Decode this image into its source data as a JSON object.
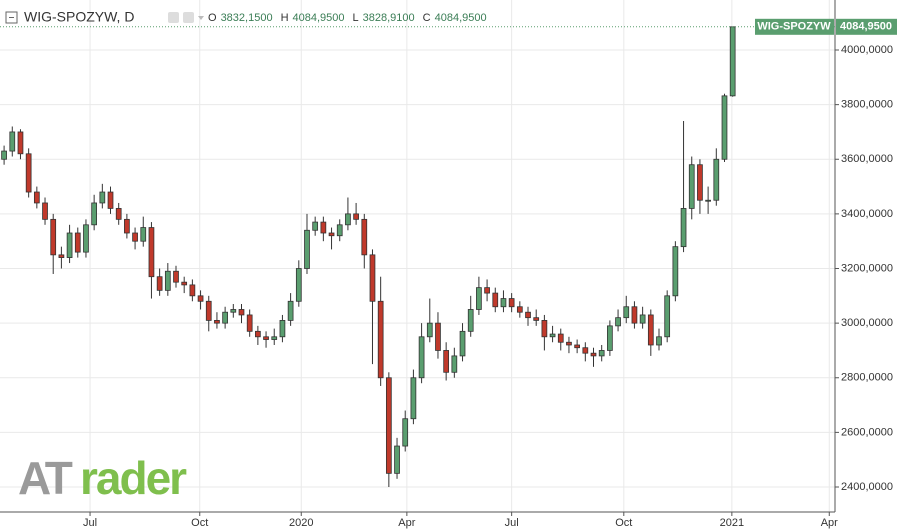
{
  "chart_data": {
    "type": "candlestick",
    "symbol": "WIG-SPOZYW, D",
    "ohlc_legend": [
      {
        "key": "O",
        "text": "3832,1500"
      },
      {
        "key": "H",
        "text": "4084,9500"
      },
      {
        "key": "L",
        "text": "3828,9100"
      },
      {
        "key": "C",
        "text": "4084,9500"
      }
    ],
    "last_price": {
      "name": "WIG-SPOZYW",
      "value": 4084.95,
      "label": "4084,9500"
    },
    "watermark": [
      "AT",
      "rader"
    ],
    "categories": [
      null,
      null,
      null,
      null,
      null,
      null,
      null,
      null,
      null,
      null,
      null,
      null,
      null,
      null,
      null,
      null,
      null,
      null,
      null,
      null,
      null,
      null,
      null,
      null,
      null,
      null,
      null,
      null,
      null,
      null,
      null,
      null,
      null,
      null,
      null,
      null,
      null,
      null,
      null,
      null,
      null,
      null,
      null,
      null,
      null,
      null,
      null,
      null,
      null,
      null,
      null,
      null,
      null,
      null,
      null,
      null,
      null,
      null,
      null,
      null,
      null,
      null,
      null,
      null,
      null,
      null,
      null,
      null,
      null,
      null,
      null,
      null,
      null,
      null,
      null,
      null,
      null,
      null,
      null,
      null,
      null,
      null,
      null,
      null,
      null,
      null,
      null,
      null,
      null,
      null
    ],
    "open": [
      3600,
      3630,
      3700,
      3620,
      3480,
      3440,
      3380,
      3250,
      3240,
      3330,
      3260,
      3360,
      3440,
      3480,
      3420,
      3380,
      3330,
      3300,
      3350,
      3170,
      3120,
      3190,
      3150,
      3140,
      3100,
      3080,
      3010,
      3000,
      3040,
      3050,
      3030,
      2970,
      2950,
      2940,
      2950,
      3010,
      3080,
      3200,
      3340,
      3370,
      3330,
      3320,
      3360,
      3400,
      3380,
      3250,
      3080,
      2800,
      2450,
      2550,
      2650,
      2800,
      2950,
      3000,
      2900,
      2820,
      2880,
      2970,
      3050,
      3130,
      3110,
      3060,
      3090,
      3060,
      3040,
      3020,
      3010,
      2950,
      2960,
      2930,
      2920,
      2910,
      2890,
      2880,
      2900,
      2990,
      3020,
      3060,
      3000,
      3030,
      2920,
      2950,
      3100,
      3280,
      3420,
      3580,
      3450,
      3450,
      3600,
      3832.15
    ],
    "high": [
      3650,
      3720,
      3710,
      3640,
      3500,
      3460,
      3400,
      3280,
      3360,
      3350,
      3380,
      3470,
      3510,
      3500,
      3440,
      3400,
      3350,
      3390,
      3370,
      3200,
      3220,
      3210,
      3170,
      3160,
      3120,
      3100,
      3040,
      3060,
      3070,
      3070,
      3050,
      2990,
      2970,
      2980,
      3030,
      3110,
      3230,
      3400,
      3390,
      3390,
      3350,
      3380,
      3460,
      3440,
      3400,
      3270,
      3170,
      2820,
      2580,
      2680,
      2830,
      3000,
      3090,
      3040,
      2930,
      2910,
      3000,
      3100,
      3170,
      3160,
      3130,
      3120,
      3110,
      3080,
      3060,
      3050,
      3030,
      2990,
      2980,
      2950,
      2940,
      2930,
      2910,
      2920,
      3010,
      3050,
      3100,
      3080,
      3060,
      3050,
      2980,
      3120,
      3300,
      3740,
      3610,
      3600,
      3500,
      3640,
      3840,
      4084.95
    ],
    "low": [
      3580,
      3610,
      3600,
      3460,
      3420,
      3360,
      3180,
      3200,
      3220,
      3240,
      3240,
      3340,
      3420,
      3400,
      3360,
      3310,
      3270,
      3280,
      3090,
      3100,
      3100,
      3130,
      3110,
      3080,
      3050,
      2970,
      2980,
      2980,
      3020,
      3000,
      2950,
      2920,
      2910,
      2920,
      2930,
      2990,
      3060,
      3180,
      3320,
      3300,
      3270,
      3300,
      3340,
      3360,
      3200,
      2850,
      2770,
      2400,
      2430,
      2530,
      2630,
      2780,
      2930,
      2870,
      2790,
      2800,
      2860,
      2950,
      3030,
      3080,
      3040,
      3040,
      3040,
      3020,
      2990,
      2990,
      2900,
      2930,
      2900,
      2890,
      2890,
      2860,
      2840,
      2860,
      2880,
      2970,
      3000,
      2980,
      2980,
      2880,
      2900,
      2930,
      3080,
      3260,
      3380,
      3400,
      3400,
      3430,
      3590,
      3828.91
    ],
    "close": [
      3630,
      3700,
      3620,
      3480,
      3440,
      3380,
      3250,
      3240,
      3330,
      3260,
      3360,
      3440,
      3480,
      3420,
      3380,
      3330,
      3300,
      3350,
      3170,
      3120,
      3190,
      3150,
      3140,
      3100,
      3080,
      3010,
      3000,
      3040,
      3050,
      3030,
      2970,
      2950,
      2940,
      2950,
      3010,
      3080,
      3200,
      3340,
      3370,
      3330,
      3320,
      3360,
      3400,
      3380,
      3250,
      3080,
      2800,
      2450,
      2550,
      2650,
      2800,
      2950,
      3000,
      2900,
      2820,
      2880,
      2970,
      3050,
      3130,
      3110,
      3060,
      3090,
      3060,
      3040,
      3020,
      3010,
      2950,
      2960,
      2930,
      2920,
      2910,
      2890,
      2880,
      2900,
      2990,
      3020,
      3060,
      3000,
      3030,
      2920,
      2950,
      3100,
      3280,
      3420,
      3580,
      3450,
      3450,
      3600,
      3832.15,
      4084.95
    ],
    "up_color": "#5a9e6f",
    "down_color": "#c0392b",
    "border_color": "#333333",
    "xlim": [
      -0.5,
      101.5
    ],
    "xticks": [
      {
        "value": 10.5,
        "label": "Jul"
      },
      {
        "value": 23.9,
        "label": "Oct"
      },
      {
        "value": 36.3,
        "label": "2020"
      },
      {
        "value": 49.2,
        "label": "Apr"
      },
      {
        "value": 62,
        "label": "Jul"
      },
      {
        "value": 75.7,
        "label": "Oct"
      },
      {
        "value": 88.9,
        "label": "2021"
      },
      {
        "value": 100.8,
        "label": "Apr"
      }
    ],
    "ylim": [
      2308.5,
      4183.1
    ],
    "yticks": [
      {
        "value": 2400,
        "label": "2400,0000"
      },
      {
        "value": 2600,
        "label": "2600,0000"
      },
      {
        "value": 2800,
        "label": "2800,0000"
      },
      {
        "value": 3000,
        "label": "3000,0000"
      },
      {
        "value": 3200,
        "label": "3200,0000"
      },
      {
        "value": 3400,
        "label": "3400,0000"
      },
      {
        "value": 3600,
        "label": "3600,0000"
      },
      {
        "value": 3800,
        "label": "3800,0000"
      },
      {
        "value": 4000,
        "label": "4000,0000"
      }
    ],
    "grid": true
  }
}
